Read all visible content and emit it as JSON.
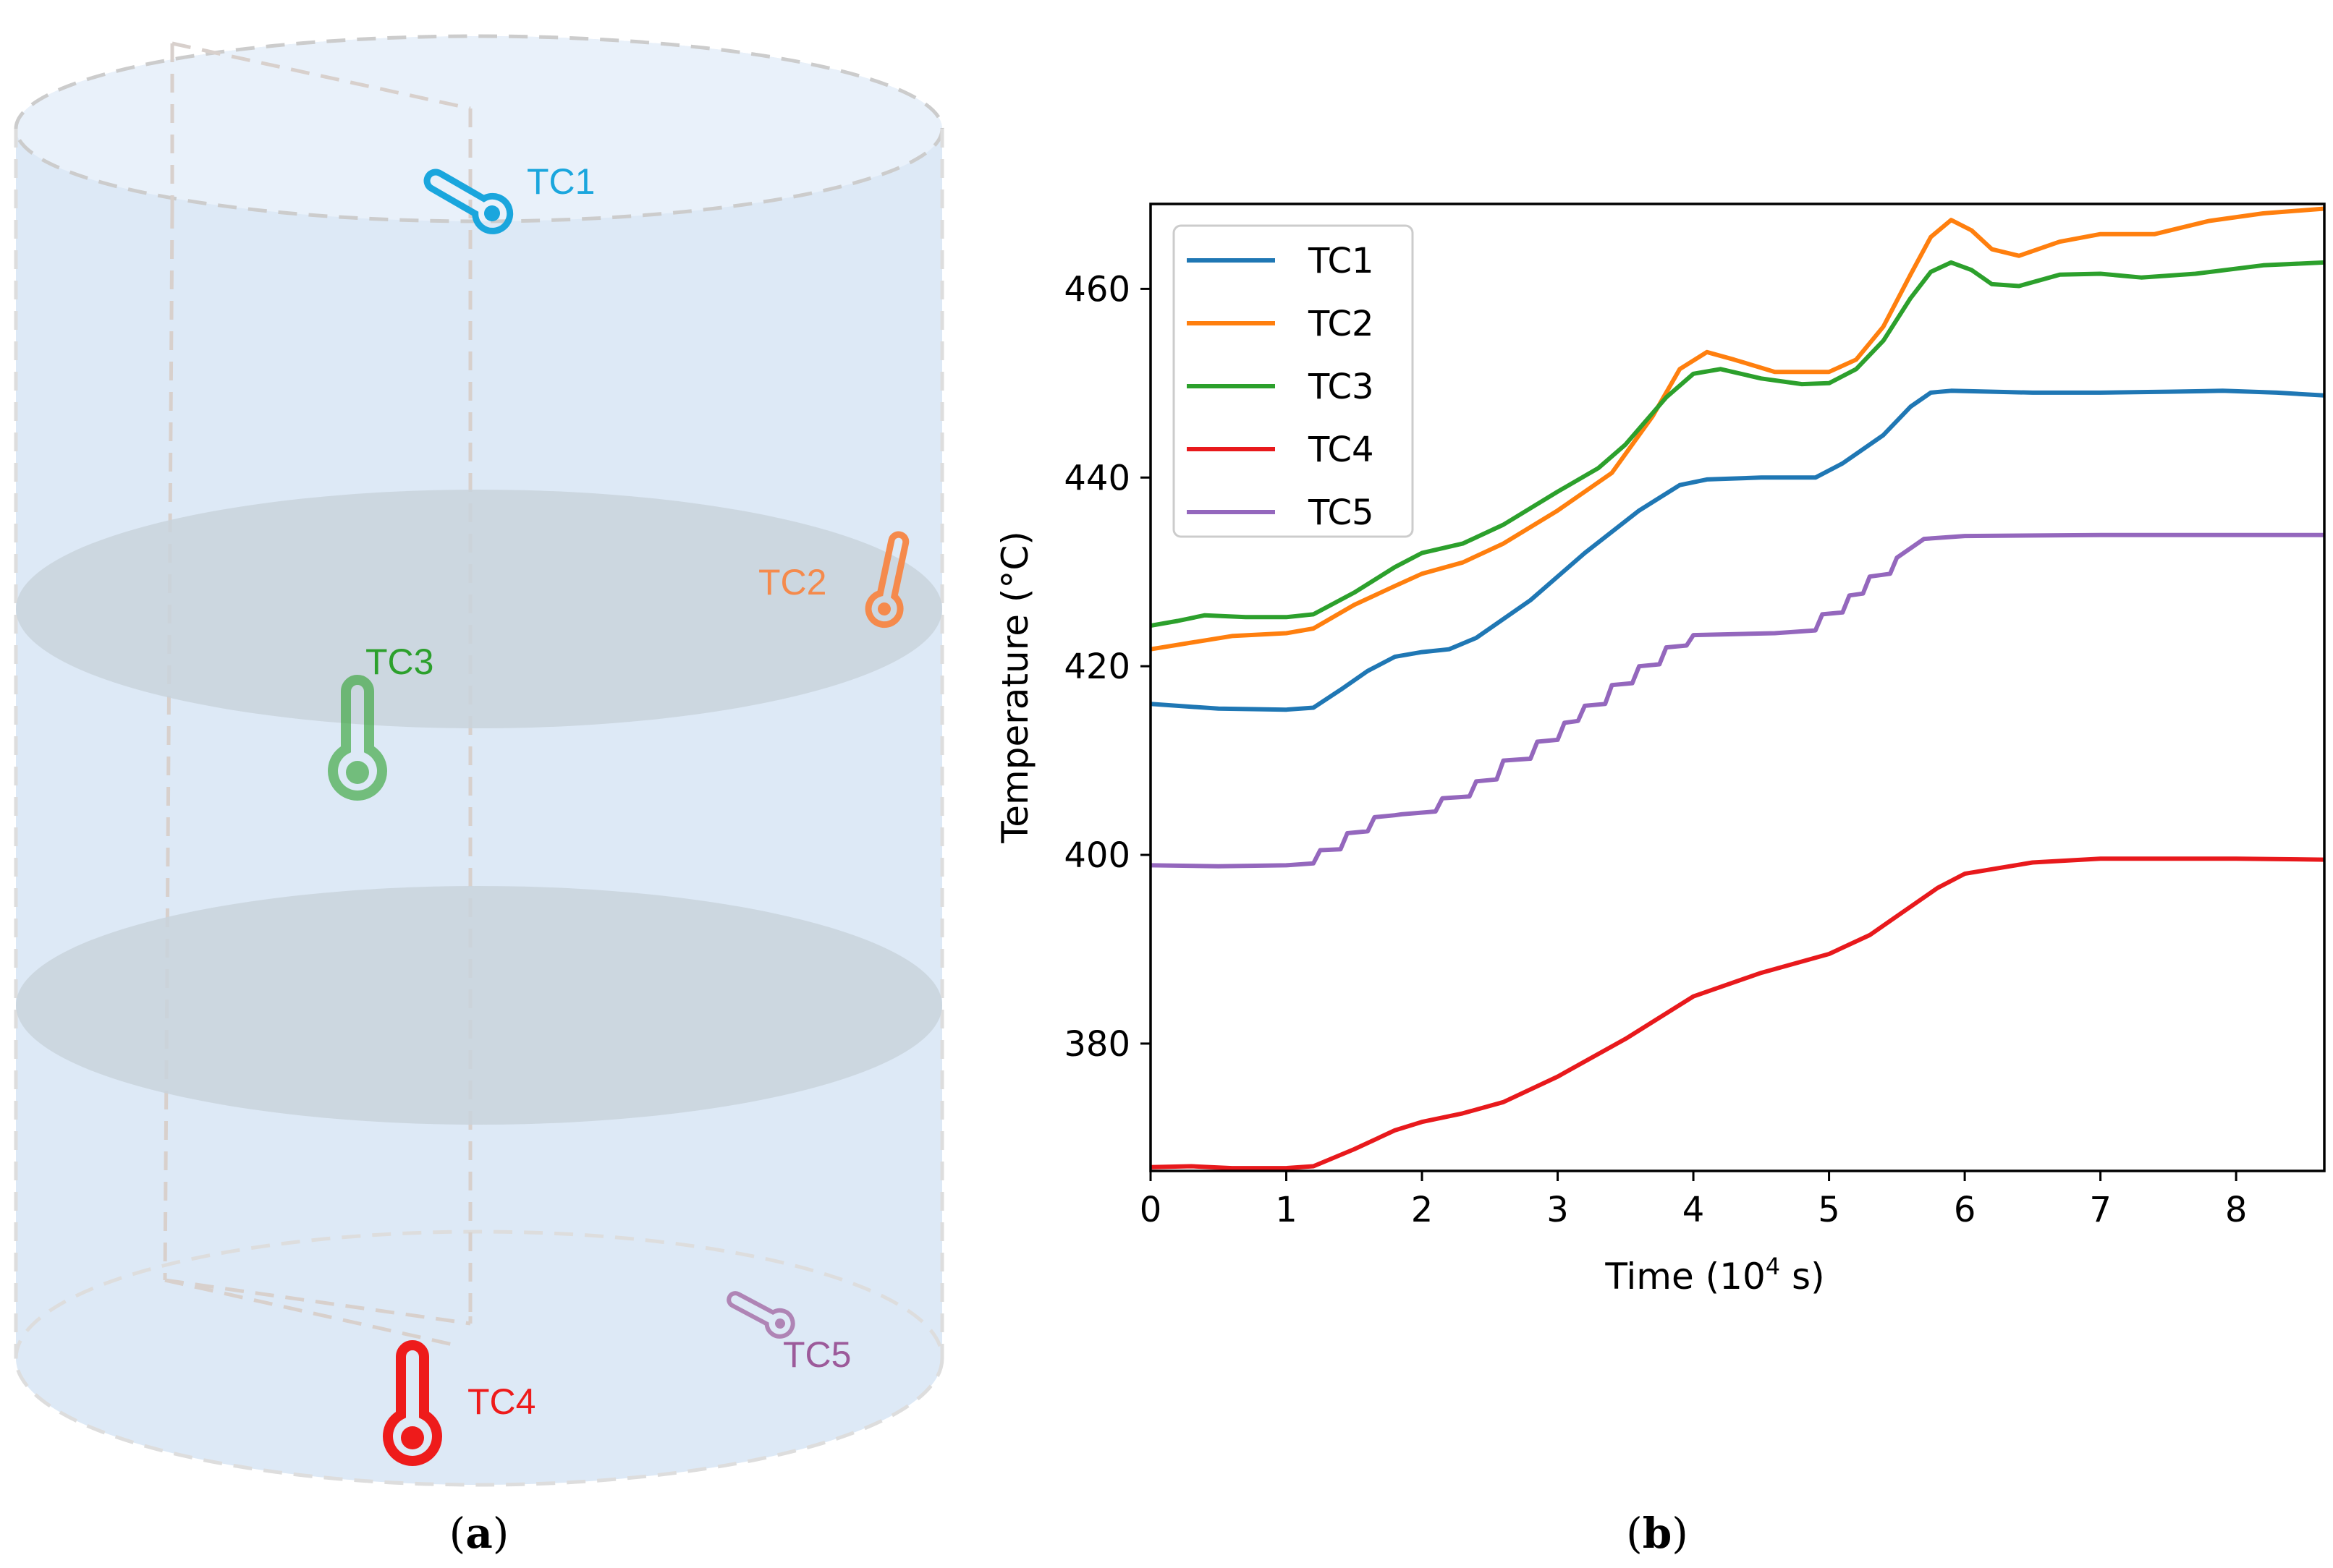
{
  "panels": {
    "a": "(a)",
    "b": "(b)"
  },
  "colors": {
    "TC1": "#1f77b4",
    "TC2": "#ff7f0e",
    "TC3": "#2ca02c",
    "TC4": "#e8191c",
    "TC5": "#9467bd",
    "cylinder_fill": "#dde9f6",
    "disc_fill": "#c9d3dc"
  },
  "diagram": {
    "sensors": [
      {
        "id": "tc1",
        "label": "TC1",
        "color": "#1aa6dd",
        "icon": "thermometer-icon"
      },
      {
        "id": "tc2",
        "label": "TC2",
        "color": "#f58a4c",
        "icon": "thermometer-icon"
      },
      {
        "id": "tc3",
        "label": "TC3",
        "color": "#2ca02c",
        "icon": "thermometer-icon"
      },
      {
        "id": "tc4",
        "label": "TC4",
        "color": "#ee1b1b",
        "icon": "thermometer-icon"
      },
      {
        "id": "tc5",
        "label": "TC5",
        "color": "#9c5a9a",
        "icon": "thermometer-icon"
      }
    ]
  },
  "chart_data": {
    "type": "line",
    "title": "",
    "xlabel": "Time (10",
    "xlabel_sup": "4",
    "xlabel_suffix": " s)",
    "ylabel": "Temperature (°C)",
    "xlim": [
      0,
      8.65
    ],
    "ylim": [
      366.5,
      469
    ],
    "xticks": [
      0,
      1,
      2,
      3,
      4,
      5,
      6,
      7,
      8
    ],
    "yticks": [
      380,
      400,
      420,
      440,
      460
    ],
    "legend_position": "top-left",
    "series": [
      {
        "name": "TC1",
        "color": "#1f77b4",
        "x": [
          0,
          0.5,
          1.0,
          1.2,
          1.4,
          1.6,
          1.8,
          2.0,
          2.2,
          2.4,
          2.8,
          3.2,
          3.6,
          3.9,
          4.1,
          4.5,
          4.9,
          5.1,
          5.4,
          5.6,
          5.75,
          5.9,
          6.5,
          7.0,
          7.5,
          7.9,
          8.3,
          8.65
        ],
        "y": [
          416,
          415.5,
          415.4,
          415.6,
          417.5,
          419.5,
          421,
          421.5,
          421.8,
          423,
          427,
          432,
          436.5,
          439.2,
          439.8,
          440,
          440,
          441.5,
          444.5,
          447.5,
          449,
          449.2,
          449,
          449,
          449.1,
          449.2,
          449,
          448.7
        ]
      },
      {
        "name": "TC2",
        "color": "#ff7f0e",
        "x": [
          0,
          0.3,
          0.6,
          1.0,
          1.2,
          1.5,
          1.8,
          2.0,
          2.3,
          2.6,
          3.0,
          3.4,
          3.7,
          3.9,
          4.1,
          4.3,
          4.6,
          5.0,
          5.2,
          5.4,
          5.6,
          5.75,
          5.9,
          6.05,
          6.2,
          6.4,
          6.7,
          7.0,
          7.4,
          7.8,
          8.2,
          8.65
        ],
        "y": [
          421.8,
          422.5,
          423.2,
          423.5,
          424,
          426.5,
          428.5,
          429.8,
          431,
          433,
          436.5,
          440.5,
          446.5,
          451.5,
          453.3,
          452.5,
          451.2,
          451.2,
          452.5,
          456,
          461.5,
          465.5,
          467.3,
          466.2,
          464.2,
          463.5,
          465,
          465.8,
          465.8,
          467.2,
          468,
          468.5
        ]
      },
      {
        "name": "TC3",
        "color": "#2ca02c",
        "x": [
          0,
          0.2,
          0.4,
          0.7,
          1.0,
          1.2,
          1.5,
          1.8,
          2.0,
          2.3,
          2.6,
          3.0,
          3.3,
          3.5,
          3.8,
          4.0,
          4.2,
          4.5,
          4.8,
          5.0,
          5.2,
          5.4,
          5.6,
          5.75,
          5.9,
          6.05,
          6.2,
          6.4,
          6.7,
          7.0,
          7.3,
          7.7,
          8.2,
          8.65
        ],
        "y": [
          424.3,
          424.8,
          425.4,
          425.2,
          425.2,
          425.5,
          427.8,
          430.5,
          432,
          433,
          435,
          438.5,
          441,
          443.5,
          448.5,
          451,
          451.5,
          450.5,
          449.9,
          450,
          451.5,
          454.5,
          459,
          461.8,
          462.8,
          462,
          460.5,
          460.3,
          461.5,
          461.6,
          461.2,
          461.6,
          462.5,
          462.8
        ]
      },
      {
        "name": "TC4",
        "color": "#e8191c",
        "x": [
          0,
          0.3,
          0.6,
          1.0,
          1.2,
          1.5,
          1.8,
          2.0,
          2.3,
          2.6,
          3.0,
          3.5,
          4.0,
          4.5,
          5.0,
          5.3,
          5.5,
          5.8,
          6.0,
          6.5,
          7.0,
          7.5,
          8.0,
          8.65
        ],
        "y": [
          366.9,
          367,
          366.8,
          366.8,
          367,
          368.8,
          370.8,
          371.7,
          372.6,
          373.8,
          376.5,
          380.5,
          385,
          387.5,
          389.5,
          391.5,
          393.5,
          396.5,
          398,
          399.2,
          399.6,
          399.6,
          399.6,
          399.5
        ]
      },
      {
        "name": "TC5",
        "color": "#9467bd",
        "x": [
          0,
          0.5,
          1.0,
          1.2,
          1.25,
          1.4,
          1.45,
          1.6,
          1.65,
          1.8,
          1.85,
          2.1,
          2.15,
          2.35,
          2.4,
          2.55,
          2.6,
          2.8,
          2.85,
          3.0,
          3.05,
          3.15,
          3.2,
          3.35,
          3.4,
          3.55,
          3.6,
          3.75,
          3.8,
          3.95,
          4.0,
          4.6,
          4.9,
          4.95,
          5.1,
          5.15,
          5.25,
          5.3,
          5.45,
          5.5,
          5.6,
          5.7,
          6.0,
          7.0,
          8.0,
          8.65
        ],
        "y": [
          398.9,
          398.8,
          398.9,
          399.1,
          400.5,
          400.6,
          402.3,
          402.5,
          404,
          404.2,
          404.3,
          404.6,
          406,
          406.2,
          407.8,
          408,
          410,
          410.2,
          412,
          412.2,
          414,
          414.2,
          415.8,
          416,
          418,
          418.2,
          420,
          420.2,
          422,
          422.2,
          423.3,
          423.5,
          423.8,
          425.5,
          425.7,
          427.5,
          427.7,
          429.5,
          429.8,
          431.5,
          432.5,
          433.5,
          433.8,
          433.9,
          433.9,
          433.9
        ]
      }
    ]
  }
}
